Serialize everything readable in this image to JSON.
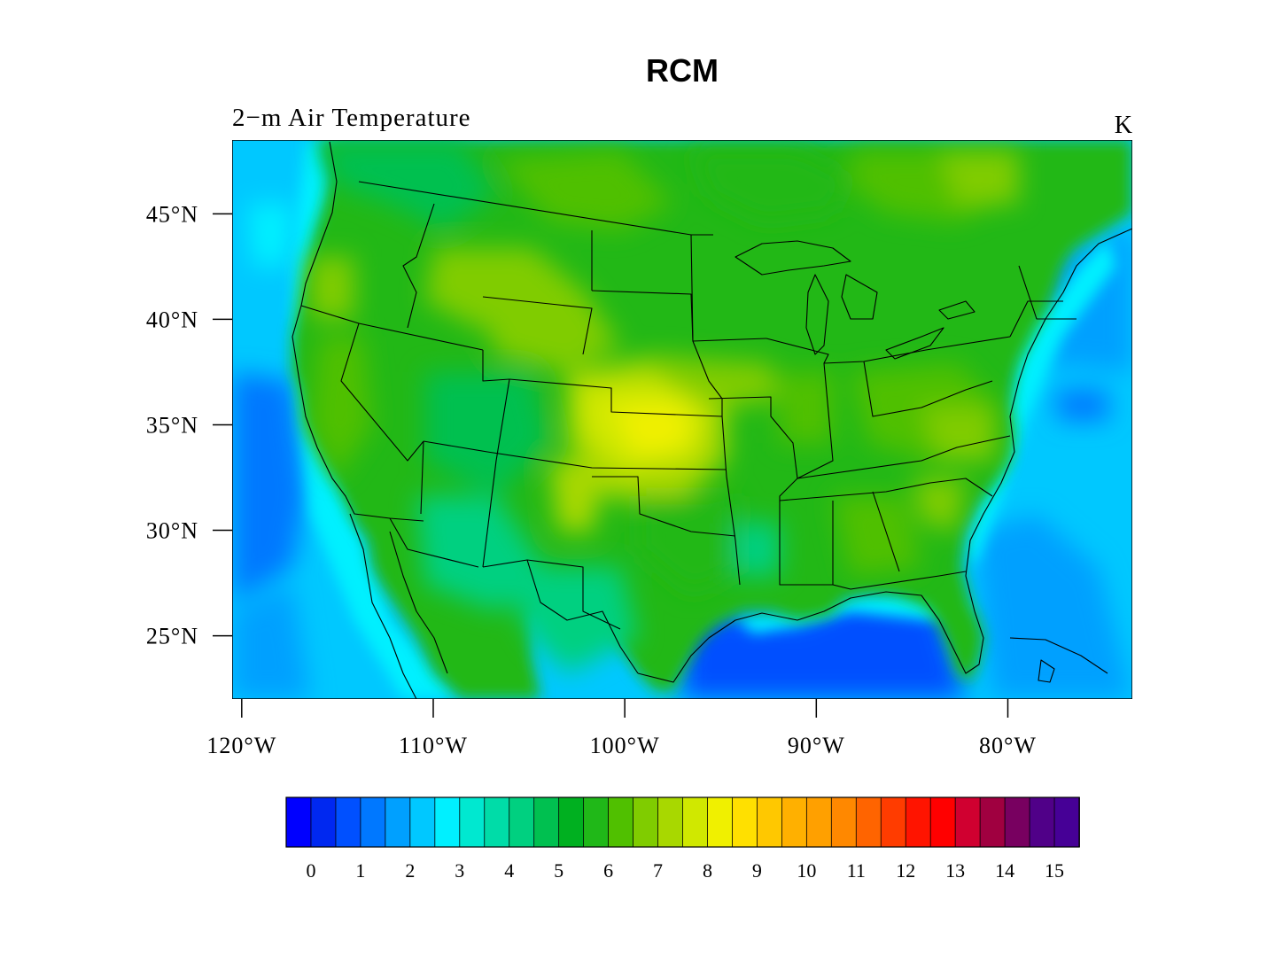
{
  "title": "RCM",
  "left_string": "2−m Air Temperature",
  "right_string": "K",
  "map": {
    "projection": "lat-lon",
    "lon_range": [
      -120.5,
      -73.5
    ],
    "lat_range": [
      22,
      48.5
    ],
    "lat_ticks": [
      {
        "value": 45,
        "label": "45°N"
      },
      {
        "value": 40,
        "label": "40°N"
      },
      {
        "value": 35,
        "label": "35°N"
      },
      {
        "value": 30,
        "label": "30°N"
      },
      {
        "value": 25,
        "label": "25°N"
      }
    ],
    "lon_ticks": [
      {
        "value": -120,
        "label": "120°W"
      },
      {
        "value": -110,
        "label": "110°W"
      },
      {
        "value": -100,
        "label": "100°W"
      },
      {
        "value": -90,
        "label": "90°W"
      },
      {
        "value": -80,
        "label": "80°W"
      }
    ],
    "field_extremes": {
      "min_region": "Gulf of Mexico / Atlantic ocean",
      "max_region": "southern Great Plains (Kansas/Oklahoma)",
      "approx_max": 9,
      "approx_ocean_min": 1
    }
  },
  "colorbar": {
    "levels": [
      0,
      0.5,
      1,
      1.5,
      2,
      2.5,
      3,
      3.5,
      4,
      4.5,
      5,
      5.5,
      6,
      6.5,
      7,
      7.5,
      8,
      8.5,
      9,
      9.5,
      10,
      10.5,
      11,
      11.5,
      12,
      12.5,
      13,
      13.5,
      14,
      14.5,
      15
    ],
    "labels": [
      "0",
      "1",
      "2",
      "3",
      "4",
      "5",
      "6",
      "7",
      "8",
      "9",
      "10",
      "11",
      "12",
      "13",
      "14",
      "15"
    ],
    "colors": [
      "#0000ff",
      "#0028f0",
      "#0050ff",
      "#0078ff",
      "#00a0ff",
      "#00c8ff",
      "#00f0ff",
      "#00e8d0",
      "#00dca8",
      "#00d080",
      "#00c050",
      "#00b020",
      "#20b818",
      "#50c000",
      "#80cc00",
      "#a8d800",
      "#d0e800",
      "#f0f000",
      "#ffe000",
      "#ffc800",
      "#ffb000",
      "#ffa000",
      "#ff8800",
      "#ff6400",
      "#ff3c00",
      "#ff1400",
      "#ff0000",
      "#d00030",
      "#a00040",
      "#780060",
      "#500088",
      "#460096"
    ]
  }
}
